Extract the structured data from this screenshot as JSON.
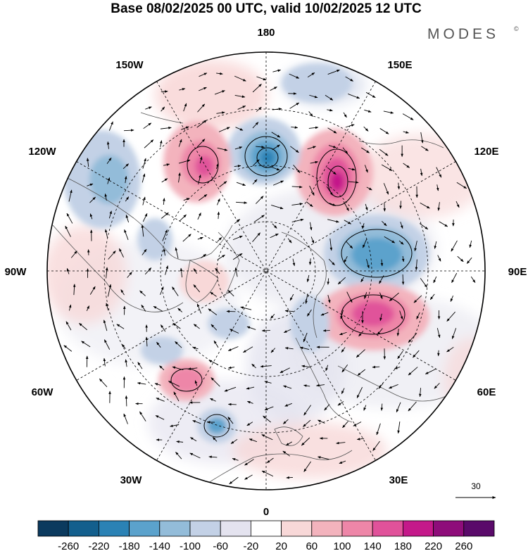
{
  "title": "Base 08/02/2025 00 UTC, valid 10/02/2025 12 UTC",
  "brand": {
    "name": "MODES",
    "mark": "©"
  },
  "longitude_labels": {
    "top": "180",
    "bottom": "0",
    "left": "90W",
    "right": "90E",
    "upper_left_1": "150W",
    "upper_left_2": "120W",
    "upper_right_1": "150E",
    "upper_right_2": "120E",
    "lower_left_1": "60W",
    "lower_left_2": "30W",
    "lower_right_1": "60E",
    "lower_right_2": "30E"
  },
  "vector_reference": {
    "value": "30"
  },
  "colorbar": {
    "ticks": [
      "-260",
      "-220",
      "-180",
      "-140",
      "-100",
      "-60",
      "-20",
      "20",
      "60",
      "100",
      "140",
      "180",
      "220",
      "260"
    ],
    "colors": [
      "#0b3a5e",
      "#135f8d",
      "#2b82b5",
      "#5ba2cc",
      "#93bcd9",
      "#c3d1e6",
      "#e4e3ef",
      "#ffffff",
      "#f8d8d8",
      "#f3b3bd",
      "#ee86a8",
      "#e0529a",
      "#c4198a",
      "#8e0d7a",
      "#5a0a6a"
    ]
  },
  "map_features": {
    "projection": "north-polar-stereographic",
    "anomalies": [
      {
        "name": "siberia-high-positive",
        "sign": "positive",
        "level": 180
      },
      {
        "name": "central-asia-negative",
        "sign": "negative",
        "level": -180
      },
      {
        "name": "east-siberia-positive",
        "sign": "positive",
        "level": 220
      },
      {
        "name": "bering-negative",
        "sign": "negative",
        "level": -180
      },
      {
        "name": "alaska-positive",
        "sign": "positive",
        "level": 180
      },
      {
        "name": "canada-negative",
        "sign": "negative",
        "level": -140
      },
      {
        "name": "north-atlantic-positive",
        "sign": "positive",
        "level": 140
      },
      {
        "name": "mid-atlantic-negative",
        "sign": "negative",
        "level": -140
      }
    ]
  }
}
